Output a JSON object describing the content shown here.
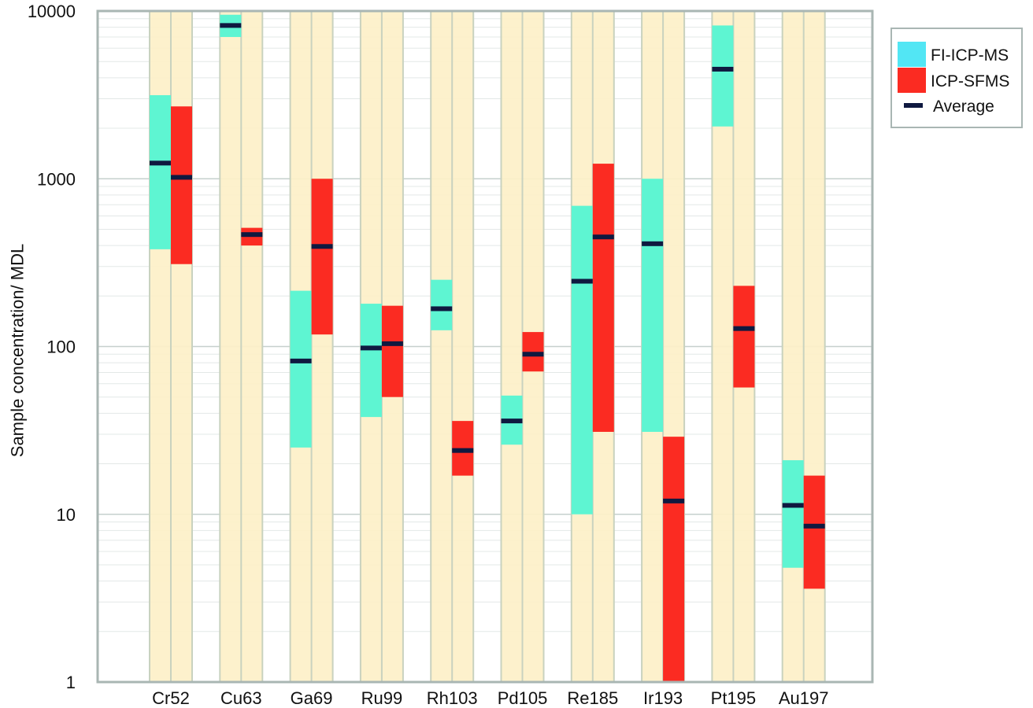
{
  "chart_data": {
    "type": "bar",
    "title": "",
    "xlabel": "",
    "ylabel": "Sample concentration/ MDL",
    "yscale": "log",
    "ylim": [
      1,
      10000
    ],
    "yticks": [
      "1",
      "10",
      "100",
      "1000",
      "10000"
    ],
    "grid": true,
    "legend_position": "top-right",
    "categories": [
      "Cr52",
      "Cu63",
      "Ga69",
      "Ru99",
      "Rh103",
      "Pd105",
      "Re185",
      "Ir193",
      "Pt195",
      "Au197"
    ],
    "series": [
      {
        "name": "FI-ICP-MS",
        "color": "#5ef5d2",
        "min": [
          380,
          7000,
          25,
          38,
          125,
          26,
          10,
          31,
          2050,
          4.8
        ],
        "max": [
          3150,
          9500,
          215,
          180,
          250,
          51,
          690,
          1000,
          8200,
          21
        ],
        "average": [
          1240,
          8200,
          82,
          98,
          168,
          36,
          245,
          410,
          4500,
          11.3
        ]
      },
      {
        "name": "ICP-SFMS",
        "color": "#fb2b22",
        "min": [
          310,
          400,
          118,
          50,
          17,
          71,
          31,
          1,
          57,
          3.6
        ],
        "max": [
          2700,
          510,
          1000,
          175,
          36,
          122,
          1230,
          29,
          230,
          17
        ],
        "average": [
          1020,
          465,
          395,
          104,
          24,
          90,
          450,
          12,
          128,
          8.5
        ]
      }
    ],
    "average_marker": {
      "name": "Average",
      "color": "#0f1940"
    }
  },
  "legend": {
    "items": [
      {
        "label": "FI-ICP-MS",
        "color": "#52e6f4"
      },
      {
        "label": "ICP-SFMS",
        "color": "#fb2b22"
      },
      {
        "label": "Average",
        "color": "#0f1940"
      }
    ]
  }
}
